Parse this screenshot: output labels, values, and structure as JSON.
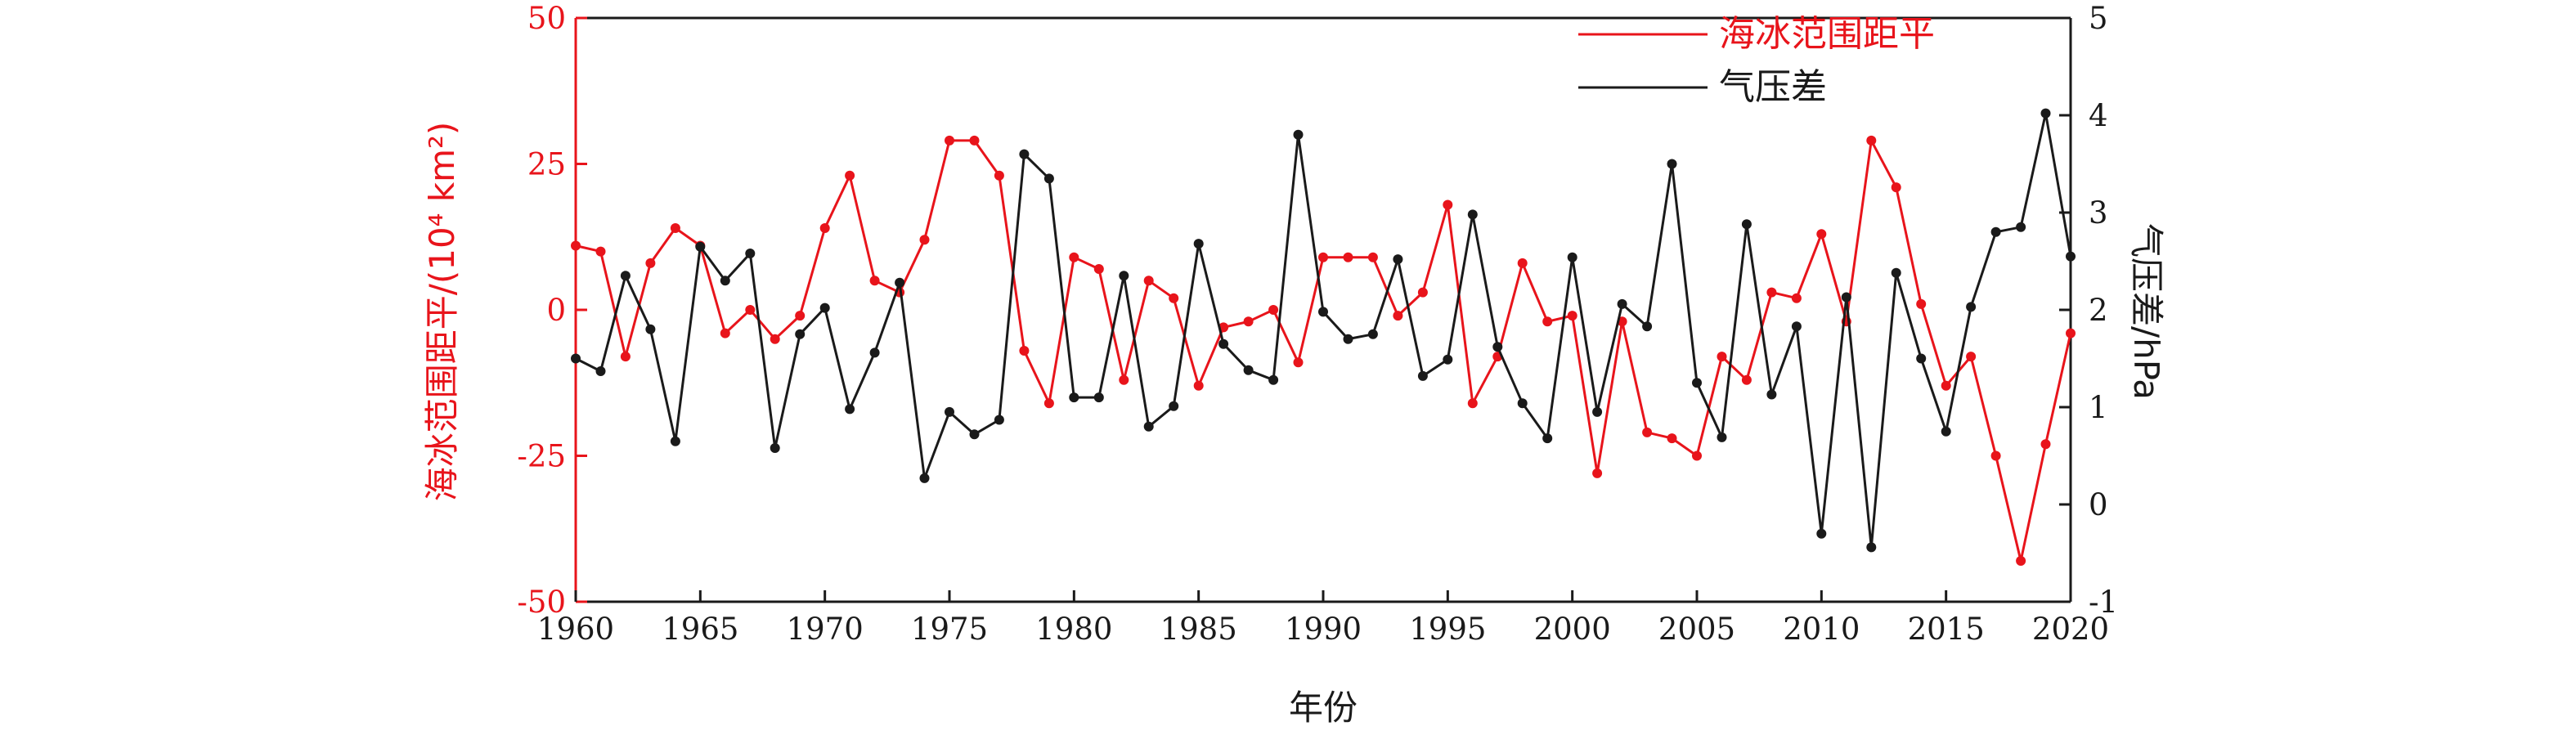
{
  "chart_data": {
    "type": "line",
    "xlabel": "年份",
    "ylabel_left": "海冰范围距平/(10⁴ km²)",
    "ylabel_right": "气压差/hPa",
    "xlim": [
      1960,
      2020
    ],
    "ylim_left": [
      -50,
      50
    ],
    "ylim_right": [
      -1,
      5
    ],
    "x_ticks": [
      1960,
      1965,
      1970,
      1975,
      1980,
      1985,
      1990,
      1995,
      2000,
      2005,
      2010,
      2015,
      2020
    ],
    "y_left_ticks": [
      -50,
      -25,
      0,
      25,
      50
    ],
    "y_right_ticks": [
      -1,
      0,
      1,
      2,
      3,
      4,
      5
    ],
    "grid": false,
    "legend_position": "top-right",
    "years": [
      1960,
      1961,
      1962,
      1963,
      1964,
      1965,
      1966,
      1967,
      1968,
      1969,
      1970,
      1971,
      1972,
      1973,
      1974,
      1975,
      1976,
      1977,
      1978,
      1979,
      1980,
      1981,
      1982,
      1983,
      1984,
      1985,
      1986,
      1987,
      1988,
      1989,
      1990,
      1991,
      1992,
      1993,
      1994,
      1995,
      1996,
      1997,
      1998,
      1999,
      2000,
      2001,
      2002,
      2003,
      2004,
      2005,
      2006,
      2007,
      2008,
      2009,
      2010,
      2011,
      2012,
      2013,
      2014,
      2015,
      2016,
      2017,
      2018,
      2019,
      2020
    ],
    "series": [
      {
        "name": "海冰范围距平",
        "axis": "left",
        "color": "#e8141b",
        "values": [
          11,
          10,
          -8,
          8,
          14,
          11,
          -4,
          0,
          -5,
          -1,
          14,
          23,
          5,
          3,
          12,
          29,
          29,
          23,
          -7,
          -16,
          9,
          7,
          -12,
          5,
          2,
          -13,
          -3,
          -2,
          0,
          -9,
          9,
          9,
          9,
          -1,
          3,
          18,
          -16,
          -8,
          8,
          -2,
          -1,
          -28,
          -2,
          -21,
          -22,
          -25,
          -8,
          -12,
          3,
          2,
          13,
          -2,
          29,
          21,
          1,
          -13,
          -8,
          -25,
          -43,
          -23,
          -4
        ]
      },
      {
        "name": "气压差",
        "axis": "right",
        "color": "#1a1a1a",
        "values": [
          1.5,
          1.37,
          2.35,
          1.8,
          0.65,
          2.65,
          2.3,
          2.58,
          0.58,
          1.75,
          2.02,
          0.98,
          1.56,
          2.28,
          0.27,
          0.95,
          0.72,
          0.87,
          3.6,
          3.35,
          1.1,
          1.1,
          2.35,
          0.8,
          1.01,
          2.68,
          1.65,
          1.38,
          1.28,
          3.8,
          1.98,
          1.7,
          1.75,
          2.52,
          1.32,
          1.49,
          2.98,
          1.62,
          1.04,
          0.68,
          2.54,
          0.95,
          2.06,
          1.83,
          3.5,
          1.25,
          0.69,
          2.88,
          1.13,
          1.83,
          -0.3,
          2.13,
          -0.44,
          2.38,
          1.5,
          0.75,
          2.03,
          2.8,
          2.85,
          4.02,
          2.55
        ]
      }
    ]
  }
}
